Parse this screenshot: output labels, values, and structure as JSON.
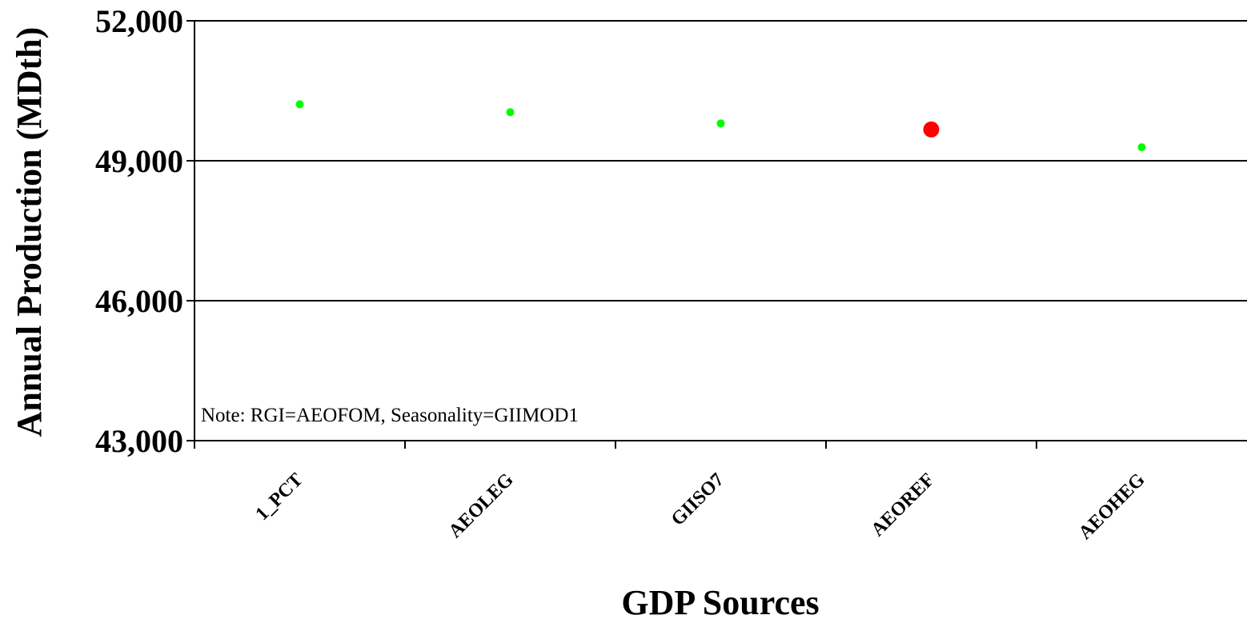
{
  "chart_data": {
    "type": "scatter",
    "categories": [
      "1_PCT",
      "AEOLEG",
      "GIISO7",
      "AEOREF",
      "AEOHEG"
    ],
    "values": [
      50210,
      50040,
      49800,
      49670,
      49290
    ],
    "highlight": {
      "category": "AEOREF",
      "color": "#ff0000"
    },
    "point_color": "#00ff00",
    "title": "",
    "xlabel": "GDP Sources",
    "ylabel": "Annual Production (MDth)",
    "ylim": [
      43000,
      52000
    ],
    "yticks": [
      43000,
      46000,
      49000,
      52000
    ],
    "ytick_labels": [
      "43,000",
      "46,000",
      "49,000",
      "52,000"
    ],
    "grid": true,
    "legend": "none",
    "annotation": "Note: RGI=AEOFOM, Seasonality=GIIMOD1"
  }
}
